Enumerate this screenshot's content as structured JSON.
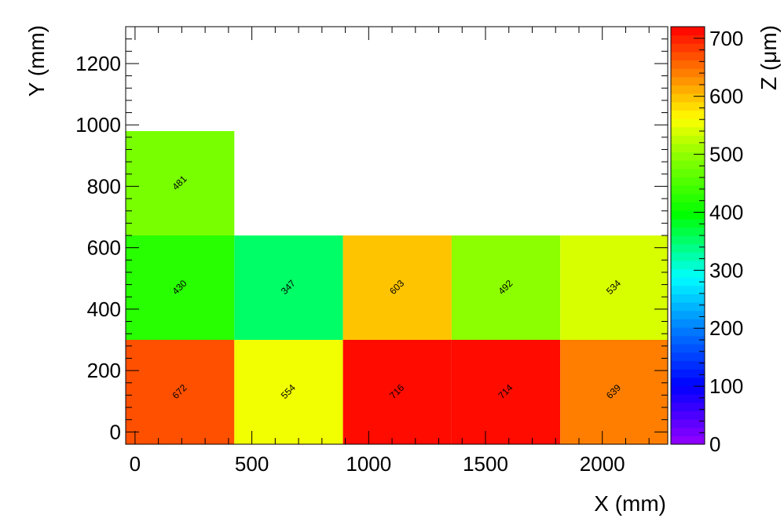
{
  "chart_data": {
    "type": "heatmap",
    "xlabel": "X (mm)",
    "ylabel": "Y (mm)",
    "zlabel": "Z (μm)",
    "xlim": [
      -40,
      2280
    ],
    "ylim": [
      -40,
      1320
    ],
    "zlim": [
      0,
      720
    ],
    "xticks": [
      0,
      500,
      1000,
      1500,
      2000
    ],
    "yticks": [
      0,
      200,
      400,
      600,
      800,
      1000,
      1200
    ],
    "zticks": [
      0,
      100,
      200,
      300,
      400,
      500,
      600,
      700
    ],
    "cells": [
      {
        "x0": -40,
        "x1": 425,
        "y0": -40,
        "y1": 300,
        "z": 672,
        "label": "672"
      },
      {
        "x0": 425,
        "x1": 890,
        "y0": -40,
        "y1": 300,
        "z": 554,
        "label": "554"
      },
      {
        "x0": 890,
        "x1": 1355,
        "y0": -40,
        "y1": 300,
        "z": 716,
        "label": "716"
      },
      {
        "x0": 1355,
        "x1": 1820,
        "y0": -40,
        "y1": 300,
        "z": 714,
        "label": "714"
      },
      {
        "x0": 1820,
        "x1": 2280,
        "y0": -40,
        "y1": 300,
        "z": 639,
        "label": "639"
      },
      {
        "x0": -40,
        "x1": 425,
        "y0": 300,
        "y1": 640,
        "z": 430,
        "label": "430"
      },
      {
        "x0": 425,
        "x1": 890,
        "y0": 300,
        "y1": 640,
        "z": 347,
        "label": "347"
      },
      {
        "x0": 890,
        "x1": 1355,
        "y0": 300,
        "y1": 640,
        "z": 603,
        "label": "603"
      },
      {
        "x0": 1355,
        "x1": 1820,
        "y0": 300,
        "y1": 640,
        "z": 492,
        "label": "492"
      },
      {
        "x0": 1820,
        "x1": 2280,
        "y0": 300,
        "y1": 640,
        "z": 534,
        "label": "534"
      },
      {
        "x0": -40,
        "x1": 425,
        "y0": 640,
        "y1": 980,
        "z": 481,
        "label": "481"
      }
    ],
    "grid": false,
    "colormap": "rainbow (violet-blue-cyan-green-yellow-orange-red)"
  }
}
